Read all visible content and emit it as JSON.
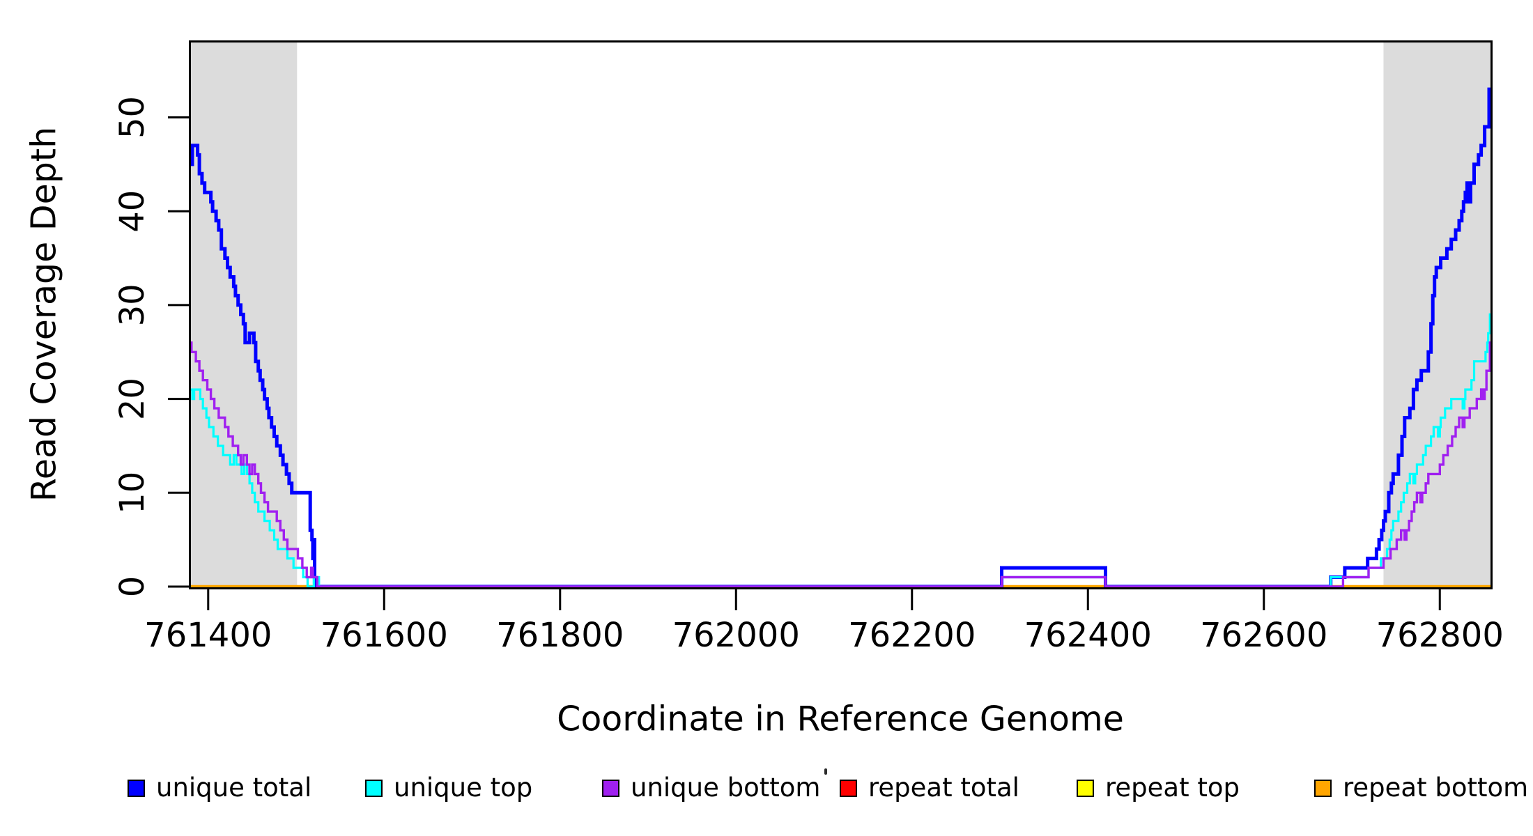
{
  "chart_data": {
    "type": "line",
    "step": true,
    "xlabel": "Coordinate in Reference Genome",
    "ylabel": "Read Coverage Depth",
    "xlim": [
      761378,
      762860
    ],
    "ylim": [
      0,
      58.2
    ],
    "xticks": [
      761400,
      761600,
      761800,
      762000,
      762200,
      762400,
      762600,
      762800
    ],
    "yticks": [
      0,
      10,
      20,
      30,
      40,
      50
    ],
    "grid": false,
    "background": "#FFFFFF",
    "shade_color": "#DCDCDC",
    "shaded_regions": [
      {
        "x0": 761378,
        "x1": 761501
      },
      {
        "x0": 762736,
        "x1": 762860
      }
    ],
    "legend_position": "bottom",
    "legend": [
      {
        "label": "unique total",
        "color": "#0000FF"
      },
      {
        "label": "unique top",
        "color": "#00FFFF"
      },
      {
        "label": "unique bottom",
        "color": "#A020F0"
      },
      {
        "label": "repeat total",
        "color": "#FF0000"
      },
      {
        "label": "repeat top",
        "color": "#FFFF00"
      },
      {
        "label": "repeat bottom",
        "color": "#FFA500"
      }
    ],
    "series": [
      {
        "name": "repeat total",
        "color": "#FF0000",
        "width": 3.2,
        "points": [
          [
            761378,
            0
          ]
        ]
      },
      {
        "name": "repeat top",
        "color": "#FFFF00",
        "width": 3.2,
        "points": [
          [
            761378,
            0
          ]
        ]
      },
      {
        "name": "repeat bottom",
        "color": "#FFA500",
        "width": 4.5,
        "points": [
          [
            761378,
            0
          ]
        ]
      },
      {
        "name": "unique total",
        "color": "#0000FF",
        "width": 5,
        "points": [
          [
            761378,
            46
          ],
          [
            761380,
            45
          ],
          [
            761382,
            47
          ],
          [
            761388,
            46
          ],
          [
            761390,
            44
          ],
          [
            761393,
            43
          ],
          [
            761396,
            42
          ],
          [
            761403,
            41
          ],
          [
            761405,
            40
          ],
          [
            761409,
            39
          ],
          [
            761412,
            38
          ],
          [
            761415,
            36
          ],
          [
            761419,
            35
          ],
          [
            761422,
            34
          ],
          [
            761425,
            33
          ],
          [
            761429,
            32
          ],
          [
            761431,
            31
          ],
          [
            761434,
            30
          ],
          [
            761437,
            29
          ],
          [
            761440,
            28
          ],
          [
            761442,
            26
          ],
          [
            761447,
            27
          ],
          [
            761452,
            26
          ],
          [
            761454,
            24
          ],
          [
            761457,
            23
          ],
          [
            761459,
            22
          ],
          [
            761462,
            21
          ],
          [
            761464,
            20
          ],
          [
            761467,
            19
          ],
          [
            761469,
            18
          ],
          [
            761472,
            17
          ],
          [
            761475,
            16
          ],
          [
            761478,
            15
          ],
          [
            761482,
            14
          ],
          [
            761485,
            13
          ],
          [
            761489,
            12
          ],
          [
            761492,
            11
          ],
          [
            761495,
            10
          ],
          [
            761516,
            6
          ],
          [
            761518,
            5
          ],
          [
            761519,
            3
          ],
          [
            761520,
            5
          ],
          [
            761521,
            0
          ],
          [
            762302,
            2
          ],
          [
            762420,
            0
          ],
          [
            762676,
            1
          ],
          [
            762692,
            2
          ],
          [
            762718,
            3
          ],
          [
            762728,
            4
          ],
          [
            762731,
            5
          ],
          [
            762734,
            6
          ],
          [
            762736,
            7
          ],
          [
            762738,
            8
          ],
          [
            762742,
            10
          ],
          [
            762745,
            11
          ],
          [
            762747,
            12
          ],
          [
            762753,
            14
          ],
          [
            762757,
            16
          ],
          [
            762760,
            18
          ],
          [
            762766,
            19
          ],
          [
            762770,
            21
          ],
          [
            762774,
            22
          ],
          [
            762779,
            23
          ],
          [
            762787,
            25
          ],
          [
            762790,
            28
          ],
          [
            762792,
            31
          ],
          [
            762794,
            33
          ],
          [
            762796,
            34
          ],
          [
            762801,
            35
          ],
          [
            762808,
            36
          ],
          [
            762813,
            37
          ],
          [
            762818,
            38
          ],
          [
            762822,
            39
          ],
          [
            762825,
            40
          ],
          [
            762827,
            41
          ],
          [
            762829,
            42
          ],
          [
            762831,
            43
          ],
          [
            762833,
            41
          ],
          [
            762835,
            43
          ],
          [
            762839,
            45
          ],
          [
            762844,
            46
          ],
          [
            762847,
            47
          ],
          [
            762851,
            49
          ],
          [
            762856,
            53
          ]
        ]
      },
      {
        "name": "unique top",
        "color": "#00FFFF",
        "width": 3.2,
        "points": [
          [
            761378,
            21
          ],
          [
            761382,
            20
          ],
          [
            761384,
            21
          ],
          [
            761391,
            20
          ],
          [
            761394,
            19
          ],
          [
            761398,
            18
          ],
          [
            761401,
            17
          ],
          [
            761406,
            16
          ],
          [
            761411,
            15
          ],
          [
            761417,
            14
          ],
          [
            761425,
            13
          ],
          [
            761429,
            14
          ],
          [
            761432,
            13
          ],
          [
            761438,
            12
          ],
          [
            761441,
            13
          ],
          [
            761444,
            12
          ],
          [
            761447,
            11
          ],
          [
            761450,
            10
          ],
          [
            761453,
            9
          ],
          [
            761457,
            8
          ],
          [
            761464,
            7
          ],
          [
            761470,
            6
          ],
          [
            761475,
            5
          ],
          [
            761479,
            4
          ],
          [
            761486,
            4
          ],
          [
            761490,
            3
          ],
          [
            761497,
            2
          ],
          [
            761503,
            2
          ],
          [
            761508,
            1
          ],
          [
            761513,
            0
          ],
          [
            761520,
            1
          ],
          [
            761526,
            0
          ],
          [
            762302,
            1
          ],
          [
            762420,
            0
          ],
          [
            762676,
            1
          ],
          [
            762719,
            2
          ],
          [
            762733,
            3
          ],
          [
            762740,
            4
          ],
          [
            762743,
            5
          ],
          [
            762745,
            6
          ],
          [
            762747,
            7
          ],
          [
            762753,
            8
          ],
          [
            762756,
            9
          ],
          [
            762759,
            10
          ],
          [
            762763,
            11
          ],
          [
            762766,
            12
          ],
          [
            762770,
            11
          ],
          [
            762772,
            12
          ],
          [
            762774,
            13
          ],
          [
            762781,
            14
          ],
          [
            762784,
            15
          ],
          [
            762790,
            16
          ],
          [
            762793,
            17
          ],
          [
            762798,
            16
          ],
          [
            762800,
            17
          ],
          [
            762801,
            18
          ],
          [
            762806,
            19
          ],
          [
            762813,
            20
          ],
          [
            762826,
            19
          ],
          [
            762828,
            20
          ],
          [
            762829,
            21
          ],
          [
            762836,
            22
          ],
          [
            762839,
            24
          ],
          [
            762852,
            25
          ],
          [
            762854,
            26
          ],
          [
            762855,
            27
          ],
          [
            762857,
            29
          ]
        ]
      },
      {
        "name": "unique bottom",
        "color": "#A020F0",
        "width": 3.4,
        "points": [
          [
            761378,
            26
          ],
          [
            761381,
            25
          ],
          [
            761386,
            24
          ],
          [
            761390,
            23
          ],
          [
            761394,
            22
          ],
          [
            761399,
            21
          ],
          [
            761403,
            20
          ],
          [
            761407,
            19
          ],
          [
            761412,
            18
          ],
          [
            761419,
            17
          ],
          [
            761423,
            16
          ],
          [
            761428,
            15
          ],
          [
            761434,
            14
          ],
          [
            761437,
            13
          ],
          [
            761440,
            14
          ],
          [
            761444,
            13
          ],
          [
            761447,
            12
          ],
          [
            761450,
            13
          ],
          [
            761453,
            12
          ],
          [
            761457,
            11
          ],
          [
            761460,
            10
          ],
          [
            761464,
            9
          ],
          [
            761468,
            8
          ],
          [
            761478,
            7
          ],
          [
            761482,
            6
          ],
          [
            761486,
            5
          ],
          [
            761490,
            4
          ],
          [
            761496,
            4
          ],
          [
            761502,
            3
          ],
          [
            761507,
            2
          ],
          [
            761512,
            1
          ],
          [
            761517,
            2
          ],
          [
            761519,
            1
          ],
          [
            761524,
            0
          ],
          [
            762302,
            1
          ],
          [
            762420,
            0
          ],
          [
            762690,
            1
          ],
          [
            762719,
            2
          ],
          [
            762736,
            3
          ],
          [
            762744,
            4
          ],
          [
            762751,
            5
          ],
          [
            762756,
            6
          ],
          [
            762760,
            5
          ],
          [
            762762,
            6
          ],
          [
            762765,
            7
          ],
          [
            762768,
            8
          ],
          [
            762771,
            9
          ],
          [
            762774,
            10
          ],
          [
            762778,
            9
          ],
          [
            762780,
            10
          ],
          [
            762784,
            11
          ],
          [
            762787,
            12
          ],
          [
            762800,
            13
          ],
          [
            762804,
            14
          ],
          [
            762809,
            15
          ],
          [
            762814,
            16
          ],
          [
            762818,
            17
          ],
          [
            762822,
            18
          ],
          [
            762826,
            17
          ],
          [
            762828,
            18
          ],
          [
            762834,
            19
          ],
          [
            762842,
            20
          ],
          [
            762847,
            21
          ],
          [
            762849,
            20
          ],
          [
            762851,
            21
          ],
          [
            762853,
            23
          ],
          [
            762857,
            26
          ]
        ]
      }
    ]
  }
}
